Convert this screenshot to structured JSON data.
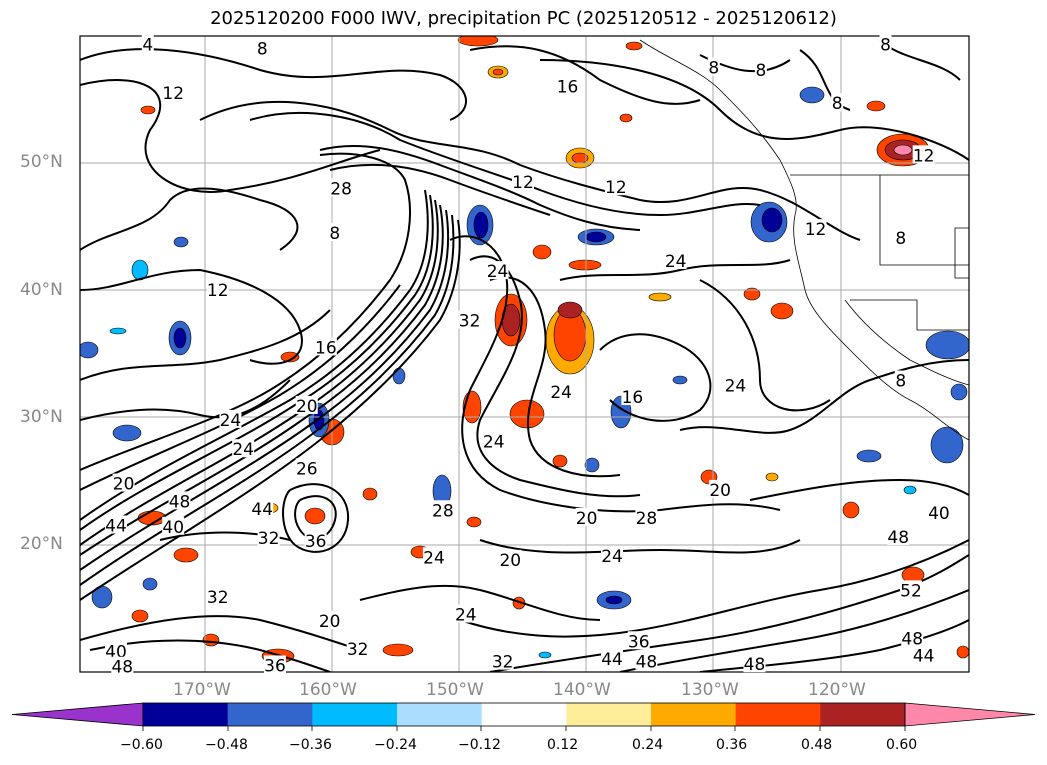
{
  "title": "2025120200 F000 IWV, precipitation PC (2025120512 - 2025120612)",
  "lat_labels": [
    "50°N",
    "40°N",
    "30°N",
    "20°N"
  ],
  "lon_labels": [
    "170°W",
    "160°W",
    "150°W",
    "140°W",
    "130°W",
    "120°W"
  ],
  "colorbar": {
    "ticks": [
      "−0.60",
      "−0.48",
      "−0.36",
      "−0.24",
      "−0.12",
      "0.12",
      "0.24",
      "0.36",
      "0.48",
      "0.60"
    ],
    "colors": [
      "#9933cc",
      "#000099",
      "#3366cc",
      "#00bbff",
      "#aaddff",
      "#ffffff",
      "#ffee99",
      "#ffaa00",
      "#ff4400",
      "#aa2222",
      "#ff88aa"
    ]
  },
  "contour_labels": [
    "4",
    "8",
    "12",
    "16",
    "20",
    "24",
    "28",
    "32",
    "36",
    "40",
    "44",
    "48",
    "52"
  ],
  "contour_label_instances": [
    {
      "text": "4",
      "lon": 174.5,
      "lat": 59.3
    },
    {
      "text": "8",
      "lon": 165.5,
      "lat": 59.0
    },
    {
      "text": "12",
      "lon": 172.5,
      "lat": 55.5
    },
    {
      "text": "16",
      "lon": 141.5,
      "lat": 56.0
    },
    {
      "text": "8",
      "lon": 116.5,
      "lat": 59.3
    },
    {
      "text": "8",
      "lon": 130.0,
      "lat": 57.5
    },
    {
      "text": "8",
      "lon": 126.3,
      "lat": 57.3
    },
    {
      "text": "8",
      "lon": 120.3,
      "lat": 54.7
    },
    {
      "text": "12",
      "lon": 113.5,
      "lat": 50.6
    },
    {
      "text": "28",
      "lon": 159.3,
      "lat": 48.0
    },
    {
      "text": "12",
      "lon": 145.0,
      "lat": 48.5
    },
    {
      "text": "12",
      "lon": 137.7,
      "lat": 48.1
    },
    {
      "text": "8",
      "lon": 159.8,
      "lat": 44.5
    },
    {
      "text": "12",
      "lon": 122.0,
      "lat": 44.8
    },
    {
      "text": "8",
      "lon": 115.3,
      "lat": 44.1
    },
    {
      "text": "12",
      "lon": 169.0,
      "lat": 40.0
    },
    {
      "text": "24",
      "lon": 147.0,
      "lat": 41.5
    },
    {
      "text": "24",
      "lon": 133.0,
      "lat": 42.3
    },
    {
      "text": "32",
      "lon": 149.2,
      "lat": 37.6
    },
    {
      "text": "16",
      "lon": 160.5,
      "lat": 35.5
    },
    {
      "text": "24",
      "lon": 142.0,
      "lat": 32.0
    },
    {
      "text": "16",
      "lon": 136.4,
      "lat": 31.6
    },
    {
      "text": "24",
      "lon": 128.3,
      "lat": 32.5
    },
    {
      "text": "8",
      "lon": 115.3,
      "lat": 32.9
    },
    {
      "text": "24",
      "lon": 168.0,
      "lat": 29.8
    },
    {
      "text": "20",
      "lon": 162.0,
      "lat": 30.9
    },
    {
      "text": "24",
      "lon": 167.0,
      "lat": 27.5
    },
    {
      "text": "24",
      "lon": 147.3,
      "lat": 28.1
    },
    {
      "text": "20",
      "lon": 176.4,
      "lat": 24.8
    },
    {
      "text": "26",
      "lon": 162.0,
      "lat": 26.0
    },
    {
      "text": "20",
      "lon": 129.5,
      "lat": 24.3
    },
    {
      "text": "48",
      "lon": 172.0,
      "lat": 23.4
    },
    {
      "text": "44",
      "lon": 165.5,
      "lat": 22.8
    },
    {
      "text": "28",
      "lon": 151.3,
      "lat": 22.7
    },
    {
      "text": "20",
      "lon": 140.0,
      "lat": 22.1
    },
    {
      "text": "28",
      "lon": 135.3,
      "lat": 22.1
    },
    {
      "text": "44",
      "lon": 177.0,
      "lat": 21.5
    },
    {
      "text": "40",
      "lon": 172.5,
      "lat": 21.4
    },
    {
      "text": "40",
      "lon": 112.3,
      "lat": 22.5
    },
    {
      "text": "32",
      "lon": 165.0,
      "lat": 20.5
    },
    {
      "text": "36",
      "lon": 161.3,
      "lat": 20.3
    },
    {
      "text": "48",
      "lon": 115.5,
      "lat": 20.6
    },
    {
      "text": "24",
      "lon": 152.0,
      "lat": 19.0
    },
    {
      "text": "20",
      "lon": 146.0,
      "lat": 18.8
    },
    {
      "text": "24",
      "lon": 138.0,
      "lat": 19.1
    },
    {
      "text": "32",
      "lon": 169.0,
      "lat": 15.9
    },
    {
      "text": "20",
      "lon": 160.2,
      "lat": 14.0
    },
    {
      "text": "24",
      "lon": 149.5,
      "lat": 14.5
    },
    {
      "text": "52",
      "lon": 114.5,
      "lat": 16.4
    },
    {
      "text": "36",
      "lon": 135.9,
      "lat": 12.4
    },
    {
      "text": "32",
      "lon": 158.0,
      "lat": 11.8
    },
    {
      "text": "32",
      "lon": 146.6,
      "lat": 10.8
    },
    {
      "text": "44",
      "lon": 138.0,
      "lat": 11.0
    },
    {
      "text": "48",
      "lon": 135.3,
      "lat": 10.8
    },
    {
      "text": "48",
      "lon": 126.8,
      "lat": 10.6
    },
    {
      "text": "48",
      "lon": 114.4,
      "lat": 12.6
    },
    {
      "text": "44",
      "lon": 113.5,
      "lat": 11.3
    },
    {
      "text": "40",
      "lon": 177.0,
      "lat": 11.6
    },
    {
      "text": "48",
      "lon": 176.5,
      "lat": 10.4
    },
    {
      "text": "36",
      "lon": 164.5,
      "lat": 10.5
    }
  ]
}
